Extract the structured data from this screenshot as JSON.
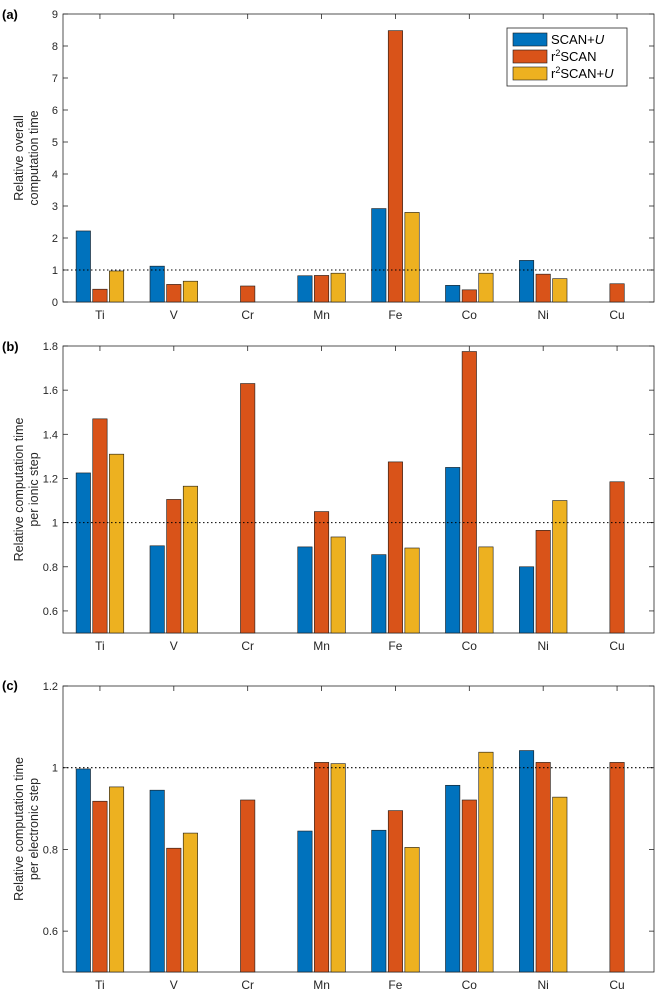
{
  "legend": {
    "entries": [
      {
        "base": "SCAN+",
        "italic": "U",
        "sup": "",
        "rest": ""
      },
      {
        "base": "r",
        "italic": "",
        "sup": "2",
        "rest": "SCAN"
      },
      {
        "base": "r",
        "italic": "U",
        "sup": "2",
        "rest": "SCAN+"
      }
    ]
  },
  "reference_line": 1,
  "chart_data": [
    {
      "type": "bar",
      "panel": "(a)",
      "ylabel": [
        "Relative overall",
        "computation time"
      ],
      "ylim": [
        0,
        9
      ],
      "yticks": [
        "0",
        "1",
        "2",
        "3",
        "4",
        "5",
        "6",
        "7",
        "8",
        "9"
      ],
      "categories": [
        "Ti",
        "V",
        "Cr",
        "Mn",
        "Fe",
        "Co",
        "Ni",
        "Cu"
      ],
      "series": [
        {
          "name": "SCAN+U",
          "color": "#0072BD",
          "values": [
            2.22,
            1.12,
            null,
            0.82,
            2.92,
            0.52,
            1.3,
            null
          ]
        },
        {
          "name": "r2SCAN",
          "color": "#D95319",
          "values": [
            0.4,
            0.55,
            0.5,
            0.83,
            8.48,
            0.38,
            0.87,
            0.57
          ]
        },
        {
          "name": "r2SCAN+U",
          "color": "#EDB120",
          "values": [
            0.97,
            0.65,
            null,
            0.9,
            2.8,
            0.9,
            0.73,
            null
          ]
        }
      ]
    },
    {
      "type": "bar",
      "panel": "(b)",
      "ylabel": [
        "Relative computation time",
        "per ionic step"
      ],
      "ylim": [
        0.5,
        1.8
      ],
      "yticks": [
        "0.6",
        "0.8",
        "1",
        "1.2",
        "1.4",
        "1.6",
        "1.8"
      ],
      "categories": [
        "Ti",
        "V",
        "Cr",
        "Mn",
        "Fe",
        "Co",
        "Ni",
        "Cu"
      ],
      "series": [
        {
          "name": "SCAN+U",
          "color": "#0072BD",
          "values": [
            1.225,
            0.895,
            null,
            0.89,
            0.855,
            1.25,
            0.8,
            null
          ]
        },
        {
          "name": "r2SCAN",
          "color": "#D95319",
          "values": [
            1.47,
            1.105,
            1.63,
            1.05,
            1.275,
            1.775,
            0.965,
            1.185
          ]
        },
        {
          "name": "r2SCAN+U",
          "color": "#EDB120",
          "values": [
            1.31,
            1.165,
            null,
            0.935,
            0.885,
            0.89,
            1.1,
            null
          ]
        }
      ]
    },
    {
      "type": "bar",
      "panel": "(c)",
      "ylabel": [
        "Relative computation time",
        "per electronic step"
      ],
      "ylim": [
        0.5,
        1.2
      ],
      "yticks": [
        "0.6",
        "0.8",
        "1",
        "1.2"
      ],
      "categories": [
        "Ti",
        "V",
        "Cr",
        "Mn",
        "Fe",
        "Co",
        "Ni",
        "Cu"
      ],
      "series": [
        {
          "name": "SCAN+U",
          "color": "#0072BD",
          "values": [
            0.997,
            0.945,
            null,
            0.845,
            0.847,
            0.957,
            1.042,
            null
          ]
        },
        {
          "name": "r2SCAN",
          "color": "#D95319",
          "values": [
            0.918,
            0.803,
            0.921,
            1.013,
            0.895,
            0.921,
            1.013,
            1.013
          ]
        },
        {
          "name": "r2SCAN+U",
          "color": "#EDB120",
          "values": [
            0.953,
            0.84,
            null,
            1.01,
            0.805,
            1.038,
            0.928,
            null
          ]
        }
      ]
    }
  ]
}
